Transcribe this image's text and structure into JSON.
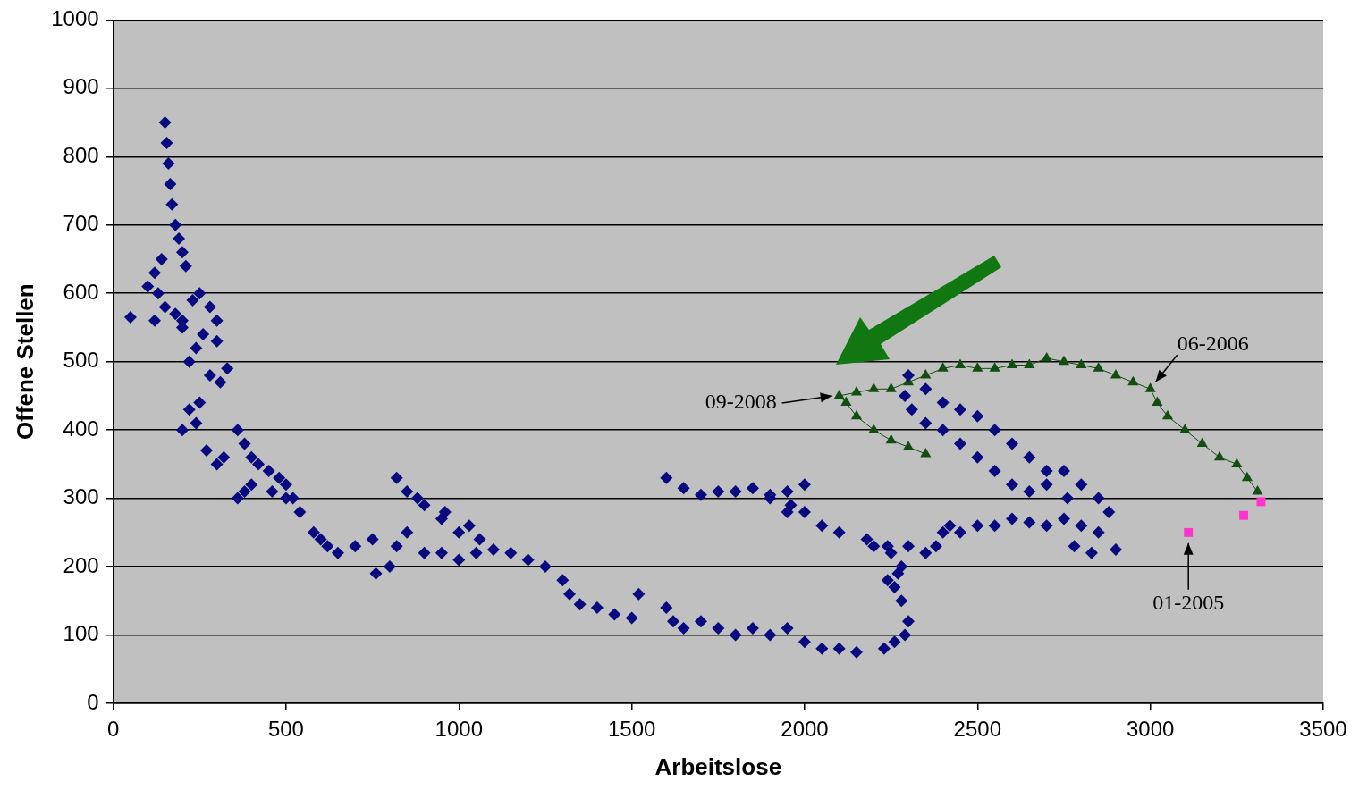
{
  "chart_data": {
    "type": "scatter",
    "xlabel": "Arbeitslose",
    "ylabel": "Offene Stellen",
    "xlim": [
      0,
      3500
    ],
    "xticks": [
      0,
      500,
      1000,
      1500,
      2000,
      2500,
      3000,
      3500
    ],
    "ylim": [
      0,
      1000
    ],
    "yticks": [
      0,
      100,
      200,
      300,
      400,
      500,
      600,
      700,
      800,
      900,
      1000
    ],
    "grid": "y",
    "legend": false,
    "series": [
      {
        "type": "scatter",
        "marker": "diamond",
        "color": "#0a0a80",
        "x": [
          150,
          155,
          160,
          165,
          170,
          180,
          190,
          200,
          210,
          140,
          120,
          100,
          130,
          150,
          180,
          200,
          230,
          250,
          280,
          300,
          260,
          240,
          220,
          200,
          120,
          50,
          300,
          330,
          280,
          310,
          250,
          220,
          200,
          240,
          270,
          300,
          320,
          360,
          380,
          400,
          420,
          450,
          480,
          500,
          520,
          540,
          500,
          460,
          400,
          360,
          380,
          580,
          600,
          620,
          650,
          700,
          750,
          760,
          800,
          820,
          850,
          900,
          950,
          1000,
          1050,
          1100,
          1150,
          1000,
          950,
          900,
          850,
          820,
          880,
          960,
          1030,
          1060,
          1200,
          1250,
          1300,
          1320,
          1350,
          1400,
          1450,
          1500,
          1520,
          1600,
          1620,
          1650,
          1700,
          1750,
          1800,
          1850,
          1900,
          1950,
          2000,
          2050,
          2100,
          2150,
          2230,
          2260,
          2290,
          2300,
          2280,
          2260,
          2240,
          2270,
          2280,
          2240,
          2180,
          2100,
          2050,
          1950,
          1900,
          1600,
          1650,
          1700,
          1750,
          1800,
          1850,
          1900,
          1950,
          2000,
          2000,
          1960,
          2200,
          2250,
          2300,
          2350,
          2380,
          2400,
          2420,
          2450,
          2500,
          2550,
          2600,
          2650,
          2700,
          2750,
          2800,
          2850,
          2780,
          2830,
          2900,
          2760,
          2700,
          2650,
          2600,
          2550,
          2500,
          2450,
          2400,
          2350,
          2300,
          2290,
          2310,
          2350,
          2400,
          2450,
          2500,
          2550,
          2600,
          2650,
          2700,
          2750,
          2800,
          2850,
          2880
        ],
        "values": [
          850,
          820,
          790,
          760,
          730,
          700,
          680,
          660,
          640,
          650,
          630,
          610,
          600,
          580,
          570,
          560,
          590,
          600,
          580,
          560,
          540,
          520,
          500,
          550,
          560,
          565,
          530,
          490,
          480,
          470,
          440,
          430,
          400,
          410,
          370,
          350,
          360,
          400,
          380,
          360,
          350,
          340,
          330,
          320,
          300,
          280,
          300,
          310,
          320,
          300,
          310,
          250,
          240,
          230,
          220,
          230,
          240,
          190,
          200,
          230,
          250,
          220,
          220,
          210,
          220,
          225,
          220,
          250,
          270,
          290,
          310,
          330,
          300,
          280,
          260,
          240,
          210,
          200,
          180,
          160,
          145,
          140,
          130,
          125,
          160,
          140,
          120,
          110,
          120,
          110,
          100,
          110,
          100,
          110,
          90,
          80,
          80,
          75,
          80,
          90,
          100,
          120,
          150,
          170,
          180,
          190,
          200,
          230,
          240,
          250,
          260,
          280,
          300,
          330,
          315,
          305,
          310,
          310,
          315,
          305,
          310,
          320,
          280,
          290,
          230,
          220,
          230,
          220,
          230,
          250,
          260,
          250,
          260,
          260,
          270,
          265,
          260,
          270,
          260,
          250,
          230,
          220,
          225,
          300,
          340,
          360,
          380,
          400,
          420,
          430,
          440,
          460,
          480,
          450,
          430,
          410,
          400,
          380,
          360,
          340,
          320,
          310,
          320,
          340,
          320,
          300,
          280
        ]
      },
      {
        "type": "line",
        "marker": "triangle",
        "color": "#124d12",
        "x": [
          3310,
          3280,
          3250,
          3200,
          3150,
          3100,
          3050,
          3020,
          3000,
          2950,
          2900,
          2850,
          2800,
          2750,
          2700,
          2650,
          2600,
          2550,
          2500,
          2450,
          2400,
          2350,
          2300,
          2250,
          2200,
          2150,
          2100,
          2120,
          2150,
          2200,
          2250,
          2300,
          2350
        ],
        "values": [
          310,
          330,
          350,
          360,
          380,
          400,
          420,
          440,
          460,
          470,
          480,
          490,
          495,
          500,
          505,
          495,
          495,
          490,
          490,
          495,
          490,
          480,
          470,
          460,
          460,
          455,
          450,
          440,
          420,
          400,
          385,
          375,
          365
        ]
      },
      {
        "type": "scatter",
        "marker": "square",
        "color": "#ff33cc",
        "x": [
          3110,
          3270,
          3320
        ],
        "values": [
          250,
          275,
          295
        ]
      }
    ],
    "annotations": [
      {
        "text": "09-2008",
        "x": 2100,
        "y": 450
      },
      {
        "text": "06-2006",
        "x": 3000,
        "y": 460
      },
      {
        "text": "01-2005",
        "x": 3110,
        "y": 250
      }
    ]
  }
}
